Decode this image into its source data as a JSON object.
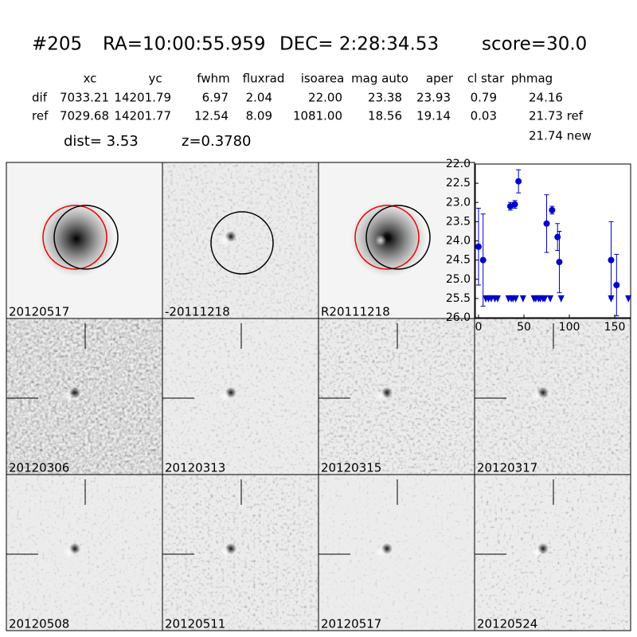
{
  "header": {
    "id": "#205",
    "ra": "RA=10:00:55.959",
    "dec": "DEC= 2:28:34.53",
    "score": "score=30.0"
  },
  "table": {
    "columns": [
      "xc",
      "yc",
      "fwhm",
      "fluxrad",
      "isoarea",
      "mag auto",
      "aper",
      "cl star",
      "phmag"
    ],
    "rows": [
      [
        "dif",
        "7033.21",
        "14201.79",
        "6.97",
        "2.04",
        "22.00",
        "23.38",
        "23.93",
        "0.79",
        "24.16"
      ],
      [
        "ref",
        "7029.68",
        "14201.77",
        "12.54",
        "8.09",
        "1081.00",
        "18.56",
        "19.14",
        "0.03",
        "21.73 ref"
      ]
    ],
    "extra": "21.74 new"
  },
  "dist": "dist=  3.53",
  "z": "z=0.3780",
  "panels": [
    {
      "label": "20120517"
    },
    {
      "label": "-20111218"
    },
    {
      "label": "R20111218"
    },
    {
      "label": "20120306"
    },
    {
      "label": "20120313"
    },
    {
      "label": "20120315"
    },
    {
      "label": "20120317"
    },
    {
      "label": "20120508"
    },
    {
      "label": "20120511"
    },
    {
      "label": "20120517",
      "color": "#ff0000"
    },
    {
      "label": "20120524"
    }
  ],
  "chart_data": {
    "type": "scatter",
    "xlim": [
      -3.5,
      167.5
    ],
    "xticks": [
      0,
      50,
      100,
      150
    ],
    "ylim": [
      26.0,
      22.0
    ],
    "yticks": [
      {
        "value": 22,
        "label": "22.0"
      },
      {
        "value": 22.5,
        "label": "22.5"
      },
      {
        "value": 23,
        "label": "23.0"
      },
      {
        "value": 23.5,
        "label": "23.5"
      },
      {
        "value": 24,
        "label": "24.0"
      },
      {
        "value": 24.5,
        "label": "24.5"
      },
      {
        "value": 25,
        "label": "25.0"
      },
      {
        "value": 25.5,
        "label": "25.5"
      },
      {
        "value": 26,
        "label": "26.0"
      }
    ],
    "series": [
      {
        "color": "#0000cc",
        "marker": "circle",
        "x": [
          0,
          5,
          35,
          40,
          44,
          75,
          81,
          87,
          89,
          146,
          152
        ],
        "values": [
          24.15,
          24.5,
          23.1,
          23.05,
          22.45,
          23.55,
          23.2,
          23.9,
          24.55,
          24.5,
          25.15
        ],
        "errors": [
          1.0,
          1.2,
          0.1,
          0.1,
          0.3,
          0.75,
          0.1,
          0.35,
          0.8,
          1.0,
          0.8
        ]
      },
      {
        "color": "#0000cc",
        "marker": "triangle-down",
        "x": [
          8,
          11,
          14,
          18,
          21,
          33,
          36,
          38,
          41,
          49,
          61,
          63,
          66,
          68,
          71,
          73,
          79,
          91,
          146,
          165
        ],
        "values": [
          25.5,
          25.5,
          25.5,
          25.5,
          25.5,
          25.5,
          25.5,
          25.5,
          25.5,
          25.5,
          25.5,
          25.5,
          25.5,
          25.5,
          25.5,
          25.5,
          25.5,
          25.5,
          25.5,
          25.5
        ]
      }
    ]
  }
}
